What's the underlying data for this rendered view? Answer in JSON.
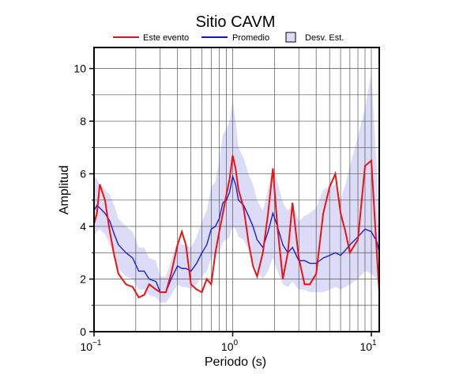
{
  "chart_data": {
    "type": "line",
    "title": "Sitio CAVM",
    "x_label": "Periodo (s)",
    "y_label": "Amplitud",
    "log_x": true,
    "grid": true,
    "legend": "top",
    "xlim": [
      0.1,
      11.4
    ],
    "ylim": [
      0,
      10.8
    ],
    "xticks": [
      {
        "value": 0.1,
        "label": "10",
        "exponent": "−1"
      },
      {
        "value": 1,
        "label": "10",
        "exponent": "0"
      },
      {
        "value": 10,
        "label": "10",
        "exponent": "1"
      }
    ],
    "xminorticks": [
      0.2,
      0.3,
      0.4,
      0.5,
      0.6,
      0.7,
      0.8,
      0.9,
      2,
      3,
      4,
      5,
      6,
      7,
      8,
      9
    ],
    "yticks": [
      0,
      2,
      4,
      6,
      8,
      10
    ],
    "yminorticks": [
      1,
      3,
      5,
      7,
      9
    ],
    "x": [
      0.1,
      0.105,
      0.11,
      0.12,
      0.13,
      0.14,
      0.15,
      0.17,
      0.19,
      0.21,
      0.23,
      0.25,
      0.28,
      0.3,
      0.33,
      0.36,
      0.4,
      0.43,
      0.46,
      0.5,
      0.55,
      0.6,
      0.65,
      0.7,
      0.75,
      0.8,
      0.85,
      0.9,
      0.95,
      1.0,
      1.05,
      1.1,
      1.2,
      1.3,
      1.4,
      1.5,
      1.65,
      1.8,
      1.95,
      2.1,
      2.3,
      2.5,
      2.7,
      3.0,
      3.3,
      3.6,
      4.0,
      4.5,
      5.0,
      5.5,
      6.0,
      6.5,
      7.0,
      8.0,
      9.0,
      10.0,
      11.0,
      11.4
    ],
    "series": [
      {
        "name": "Este evento",
        "color": "#ee1111",
        "values": [
          4.1,
          4.5,
          5.6,
          5.0,
          3.8,
          2.9,
          2.2,
          1.8,
          1.7,
          1.3,
          1.4,
          1.8,
          1.6,
          1.5,
          1.5,
          2.2,
          3.3,
          3.8,
          3.3,
          1.8,
          1.6,
          1.5,
          2.0,
          1.8,
          3.0,
          3.8,
          4.5,
          5.2,
          5.8,
          6.7,
          6.2,
          5.4,
          4.7,
          3.4,
          2.5,
          2.1,
          3.0,
          4.5,
          6.2,
          4.0,
          2.0,
          3.0,
          4.9,
          2.8,
          1.8,
          1.8,
          2.2,
          4.5,
          5.5,
          6.0,
          4.5,
          3.8,
          3.0,
          3.5,
          6.3,
          6.5,
          2.8,
          1.5
        ]
      },
      {
        "name": "Promedio",
        "color": "#1111dd",
        "values": [
          4.6,
          4.8,
          4.7,
          4.5,
          4.2,
          3.7,
          3.3,
          3.0,
          2.8,
          2.3,
          2.3,
          2.0,
          1.9,
          1.5,
          1.5,
          2.0,
          2.5,
          2.4,
          2.4,
          2.3,
          2.6,
          3.0,
          3.3,
          3.9,
          4.0,
          4.3,
          4.9,
          5.0,
          5.3,
          5.9,
          5.6,
          5.0,
          4.8,
          4.4,
          4.0,
          3.5,
          3.2,
          3.8,
          4.5,
          4.0,
          3.3,
          3.0,
          3.2,
          2.7,
          2.7,
          2.6,
          2.6,
          2.8,
          2.9,
          3.0,
          2.9,
          3.1,
          3.3,
          3.6,
          3.9,
          3.8,
          3.4,
          3.0
        ]
      },
      {
        "name": "Desv. Est.",
        "color": "#dcdcf8",
        "low": [
          3.6,
          3.8,
          3.9,
          3.7,
          3.3,
          2.8,
          2.4,
          2.1,
          2.0,
          1.6,
          1.6,
          1.4,
          1.3,
          1.1,
          1.1,
          1.4,
          1.8,
          1.7,
          1.7,
          1.6,
          1.8,
          2.1,
          2.3,
          2.8,
          2.9,
          3.0,
          3.4,
          3.5,
          3.6,
          4.0,
          3.9,
          3.6,
          3.5,
          3.1,
          2.7,
          2.3,
          2.0,
          2.3,
          2.8,
          2.3,
          1.8,
          1.7,
          1.9,
          1.6,
          1.6,
          1.5,
          1.5,
          1.5,
          1.6,
          1.7,
          1.6,
          1.7,
          1.8,
          2.0,
          2.3,
          2.2,
          2.0,
          1.8
        ],
        "high": [
          5.9,
          5.8,
          5.6,
          5.4,
          5.2,
          4.8,
          4.3,
          4.0,
          3.8,
          3.2,
          3.2,
          2.8,
          2.7,
          2.1,
          2.1,
          2.7,
          3.4,
          3.3,
          3.3,
          3.2,
          3.6,
          4.2,
          4.6,
          5.5,
          5.7,
          6.5,
          7.5,
          7.7,
          8.0,
          8.8,
          8.0,
          7.0,
          6.6,
          6.0,
          5.6,
          5.0,
          4.6,
          5.4,
          6.3,
          5.7,
          4.9,
          4.6,
          4.8,
          4.2,
          4.4,
          4.5,
          4.7,
          5.4,
          5.5,
          5.6,
          5.0,
          5.6,
          6.3,
          7.4,
          8.5,
          9.8,
          6.0,
          4.2
        ]
      }
    ]
  }
}
